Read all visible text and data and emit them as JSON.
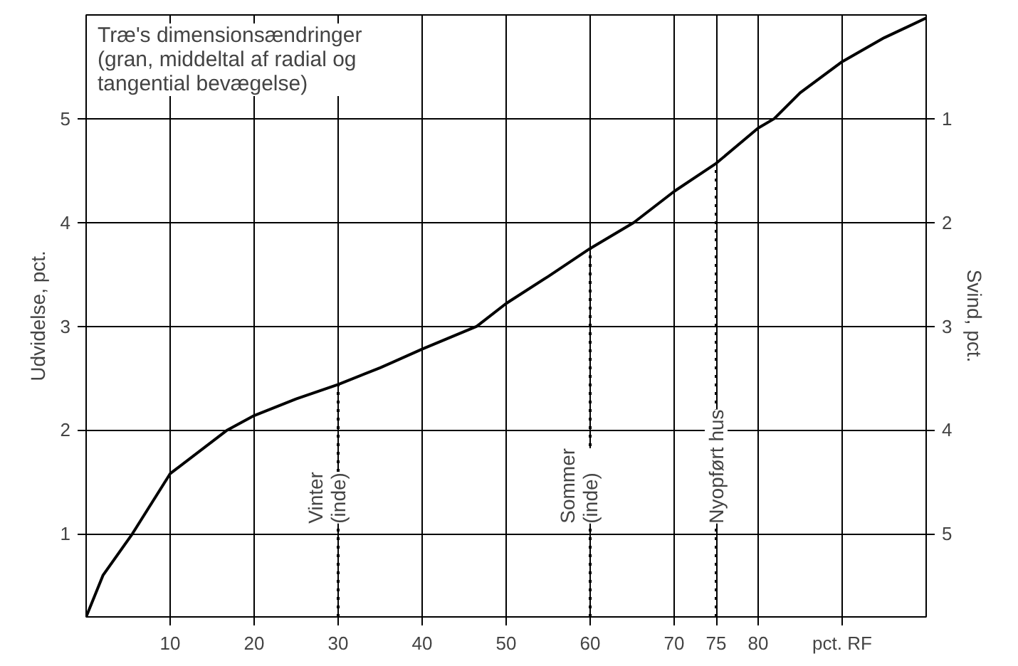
{
  "chart_data": {
    "type": "line",
    "title": "Træ's dimensionsændringer",
    "subtitle": "(gran, middeltal af radial og tangential bevægelse)",
    "ylabel": "Udvidelse, pct.",
    "y2label": "Svind, pct.",
    "x": [
      0,
      2,
      5.5,
      10,
      16.8,
      20,
      25,
      30,
      35,
      40,
      46.5,
      50,
      55,
      60,
      65.2,
      70,
      75,
      80,
      81.9,
      85,
      90,
      95,
      100
    ],
    "series": [
      {
        "color": "#000000",
        "values": [
          0.2,
          0.6,
          1.0,
          1.58,
          2.0,
          2.14,
          2.3,
          2.44,
          2.6,
          2.78,
          3.0,
          3.22,
          3.48,
          3.75,
          4.0,
          4.3,
          4.57,
          4.91,
          5.0,
          5.25,
          5.55,
          5.78,
          5.97
        ]
      }
    ],
    "xlim": [
      0,
      100
    ],
    "ylim": [
      0.2,
      6.0
    ],
    "y2lim": [
      5.8,
      0
    ],
    "xticks": [
      10,
      20,
      30,
      40,
      50,
      60,
      70,
      75,
      80,
      {
        "value": 90,
        "label": "pct. RF"
      }
    ],
    "yticks": [
      1,
      2,
      3,
      4,
      5
    ],
    "y2ticks": [
      1,
      2,
      3,
      4,
      5
    ],
    "ref_lines": [
      {
        "axis": "x",
        "value": 30,
        "label": "Vinter (inde)",
        "line_style": "dotted"
      },
      {
        "axis": "x",
        "value": 60,
        "label": "Sommer (inde)",
        "line_style": "dotted"
      },
      {
        "axis": "x",
        "value": 75,
        "label": "Nyopført hus",
        "line_style": "dotted"
      }
    ],
    "grid": true,
    "line_style": "solid",
    "marker": "none"
  }
}
